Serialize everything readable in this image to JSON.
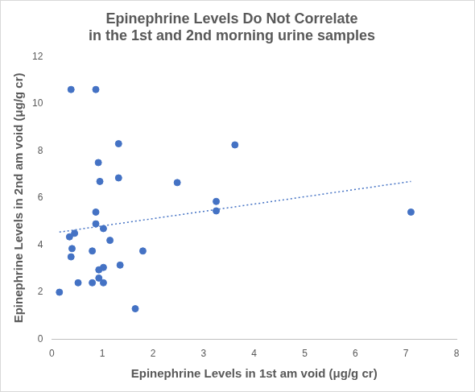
{
  "chart_data": {
    "type": "scatter",
    "title": [
      "Epinephrine Levels Do Not Correlate",
      "in the 1st and 2nd morning urine samples"
    ],
    "x_label": "Epinephrine Levels in 1st am void (μg/g cr)",
    "y_label": "Epinephrine Levels in 2nd am void (μg/g cr)",
    "xlim": [
      0,
      8
    ],
    "xticks": [
      0,
      1,
      2,
      3,
      4,
      5,
      6,
      7,
      8
    ],
    "ylim": [
      0,
      12
    ],
    "yticks": [
      0,
      2,
      4,
      6,
      8,
      10,
      12
    ],
    "grid": false,
    "series": [
      {
        "type": "scatter",
        "color": "#4472c4",
        "marker": "circle",
        "x": [
          0.38,
          0.87,
          1.32,
          3.62,
          0.92,
          1.32,
          0.95,
          2.48,
          3.25,
          3.25,
          7.1,
          0.87,
          0.87,
          1.02,
          0.45,
          0.35,
          1.15,
          0.4,
          0.8,
          1.8,
          0.38,
          1.35,
          1.02,
          0.93,
          0.93,
          0.52,
          0.8,
          1.02,
          0.15,
          1.65
        ],
        "values": [
          10.6,
          10.6,
          8.3,
          8.25,
          7.5,
          6.85,
          6.7,
          6.65,
          5.85,
          5.45,
          5.4,
          5.4,
          4.9,
          4.7,
          4.5,
          4.35,
          4.2,
          3.85,
          3.75,
          3.75,
          3.5,
          3.15,
          3.05,
          2.95,
          2.6,
          2.4,
          2.4,
          2.4,
          2.0,
          1.3
        ]
      },
      {
        "type": "line",
        "color": "#4472c4",
        "line_style": "dotted",
        "x": [
          0.15,
          7.1
        ],
        "values": [
          4.55,
          6.7
        ]
      }
    ]
  }
}
